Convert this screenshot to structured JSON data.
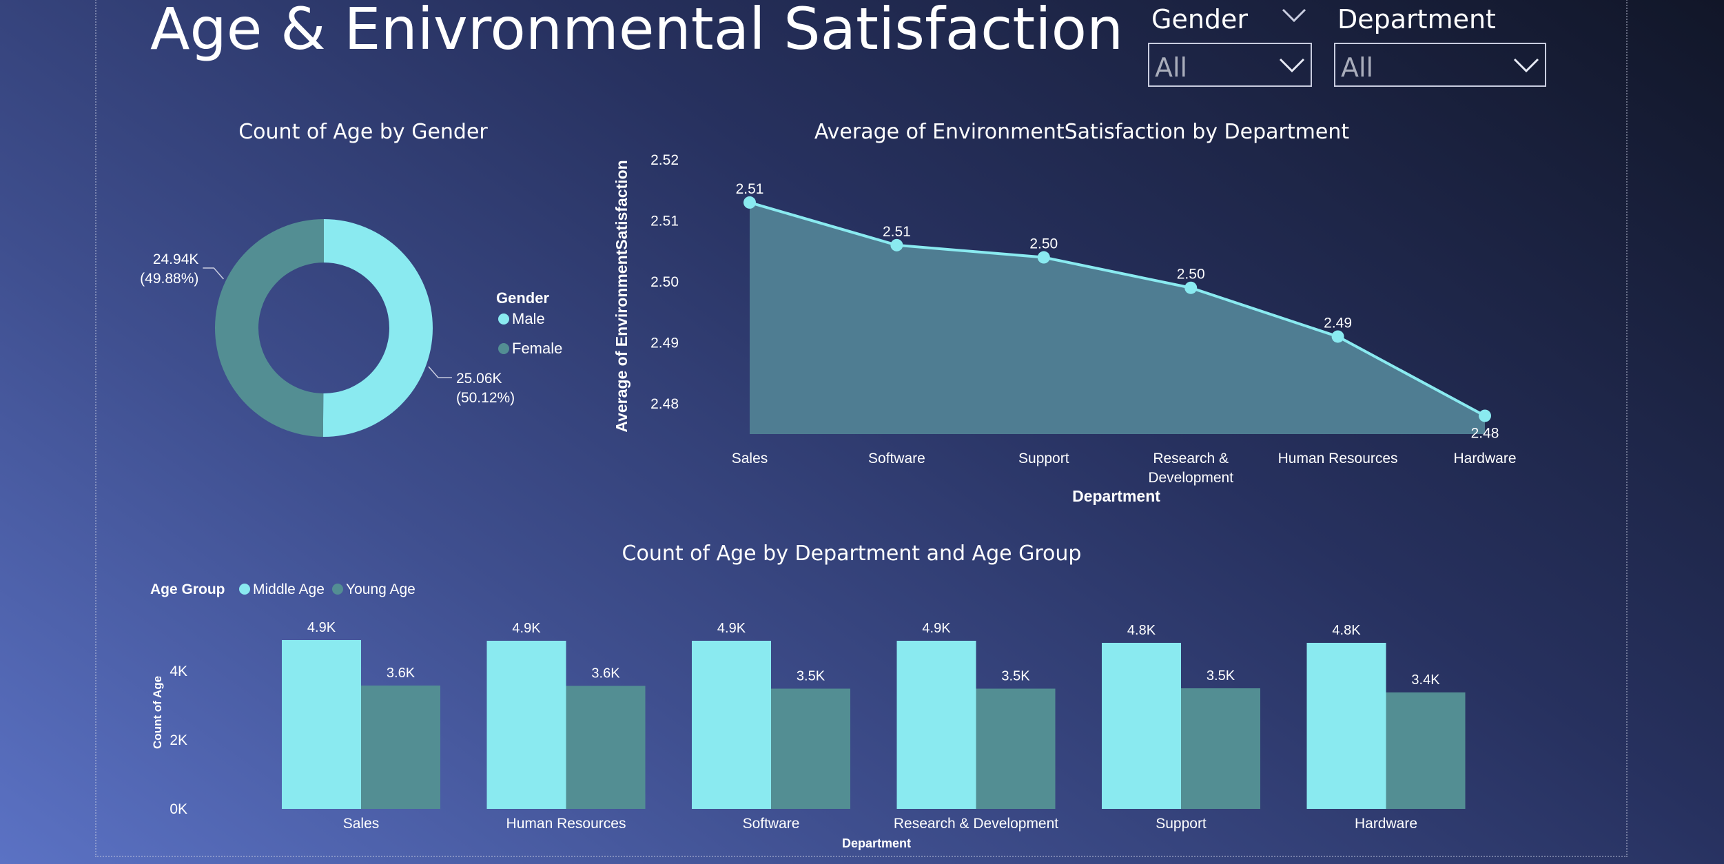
{
  "page": {
    "title": "Age & Enivronmental Satisfaction"
  },
  "slicers": [
    {
      "label": "Gender",
      "value": "All"
    },
    {
      "label": "Department",
      "value": "All"
    }
  ],
  "colors": {
    "primary": "#8aeaf0",
    "secondary": "#538e93",
    "area_fill": "#4f7d92",
    "text": "#ffffff"
  },
  "chart_data": [
    {
      "type": "pie",
      "title": "Count of Age by Gender",
      "legend": {
        "title": "Gender",
        "position": "right"
      },
      "slices": [
        {
          "name": "Male",
          "value": 25060,
          "label": "25.06K",
          "percent_label": "(50.12%)"
        },
        {
          "name": "Female",
          "value": 24940,
          "label": "24.94K",
          "percent_label": "(49.88%)"
        }
      ]
    },
    {
      "type": "area",
      "title": "Average of EnvironmentSatisfaction by Department",
      "xlabel": "Department",
      "ylabel": "Average of EnvironmentSatisfaction",
      "ylim": [
        2.475,
        2.52
      ],
      "y_ticks": [
        "2.48",
        "2.49",
        "2.50",
        "2.51",
        "2.52"
      ],
      "categories": [
        "Sales",
        "Software",
        "Support",
        "Research & Development",
        "Human Resources",
        "Hardware"
      ],
      "values": [
        2.513,
        2.506,
        2.504,
        2.499,
        2.491,
        2.478
      ],
      "data_labels": [
        "2.51",
        "2.51",
        "2.50",
        "2.50",
        "2.49",
        "2.48"
      ]
    },
    {
      "type": "bar",
      "title": "Count of Age by Department and Age Group",
      "xlabel": "Department",
      "ylabel": "Count of Age",
      "ylim": [
        0,
        5000
      ],
      "y_ticks": [
        "0K",
        "2K",
        "4K"
      ],
      "legend": {
        "title": "Age Group",
        "position": "top-left"
      },
      "categories": [
        "Sales",
        "Human Resources",
        "Software",
        "Research & Development",
        "Support",
        "Hardware"
      ],
      "series": [
        {
          "name": "Middle Age",
          "values": [
            4900,
            4880,
            4880,
            4880,
            4820,
            4820
          ],
          "labels": [
            "4.9K",
            "4.9K",
            "4.9K",
            "4.9K",
            "4.8K",
            "4.8K"
          ]
        },
        {
          "name": "Young Age",
          "values": [
            3580,
            3570,
            3490,
            3490,
            3500,
            3380
          ],
          "labels": [
            "3.6K",
            "3.6K",
            "3.5K",
            "3.5K",
            "3.5K",
            "3.4K"
          ]
        }
      ]
    }
  ]
}
